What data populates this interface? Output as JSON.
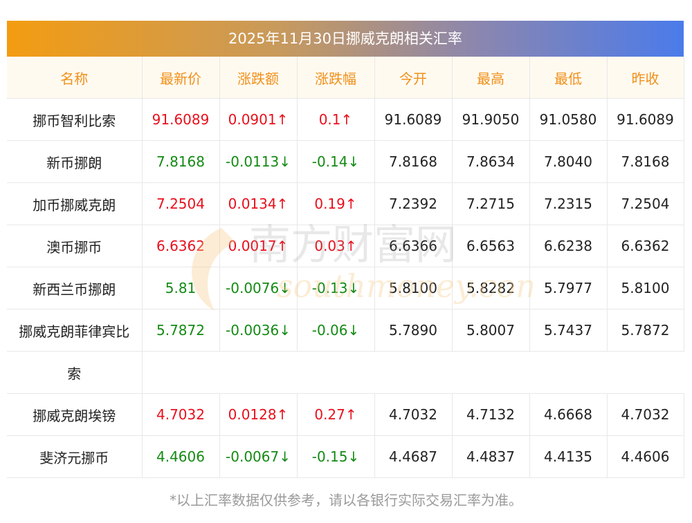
{
  "title": "2025年11月30日挪威克朗相关汇率",
  "headers": [
    "名称",
    "最新价",
    "涨跌额",
    "涨跌幅",
    "今开",
    "最高",
    "最低",
    "昨收"
  ],
  "rows": [
    {
      "name": "挪币智利比索",
      "latest": "91.6089",
      "change": "0.0901↑",
      "pct": "0.1↑",
      "open": "91.6089",
      "high": "91.9050",
      "low": "91.0580",
      "prev": "91.6089",
      "trend": "up"
    },
    {
      "name": "新币挪朗",
      "latest": "7.8168",
      "change": "-0.0113↓",
      "pct": "-0.14↓",
      "open": "7.8168",
      "high": "7.8634",
      "low": "7.8040",
      "prev": "7.8168",
      "trend": "down"
    },
    {
      "name": "加币挪威克朗",
      "latest": "7.2504",
      "change": "0.0134↑",
      "pct": "0.19↑",
      "open": "7.2392",
      "high": "7.2715",
      "low": "7.2315",
      "prev": "7.2504",
      "trend": "up"
    },
    {
      "name": "澳币挪币",
      "latest": "6.6362",
      "change": "0.0017↑",
      "pct": "0.03↑",
      "open": "6.6366",
      "high": "6.6563",
      "low": "6.6238",
      "prev": "6.6362",
      "trend": "up"
    },
    {
      "name": "新西兰币挪朗",
      "latest": "5.81",
      "change": "-0.0076↓",
      "pct": "-0.13↓",
      "open": "5.8100",
      "high": "5.8282",
      "low": "5.7977",
      "prev": "5.8100",
      "trend": "down"
    },
    {
      "name": "挪威克朗菲律宾比",
      "name_cont": "索",
      "latest": "5.7872",
      "change": "-0.0036↓",
      "pct": "-0.06↓",
      "open": "5.7890",
      "high": "5.8007",
      "low": "5.7437",
      "prev": "5.7872",
      "trend": "down"
    },
    {
      "name": "挪威克朗埃镑",
      "latest": "4.7032",
      "change": "0.0128↑",
      "pct": "0.27↑",
      "open": "4.7032",
      "high": "4.7132",
      "low": "4.6668",
      "prev": "4.7032",
      "trend": "up"
    },
    {
      "name": "斐济元挪币",
      "latest": "4.4606",
      "change": "-0.0067↓",
      "pct": "-0.15↓",
      "open": "4.4687",
      "high": "4.4837",
      "low": "4.4135",
      "prev": "4.4606",
      "trend": "down"
    }
  ],
  "watermark": {
    "cn": "南方财富网",
    "en": "southmoney.com"
  },
  "footer": "*以上汇率数据仅供参考，请以各银行实际交易汇率为准。",
  "colors": {
    "up": "#e8101c",
    "down": "#138a14",
    "header_text": "#f0901a",
    "header_bg": "#fffaf0"
  }
}
